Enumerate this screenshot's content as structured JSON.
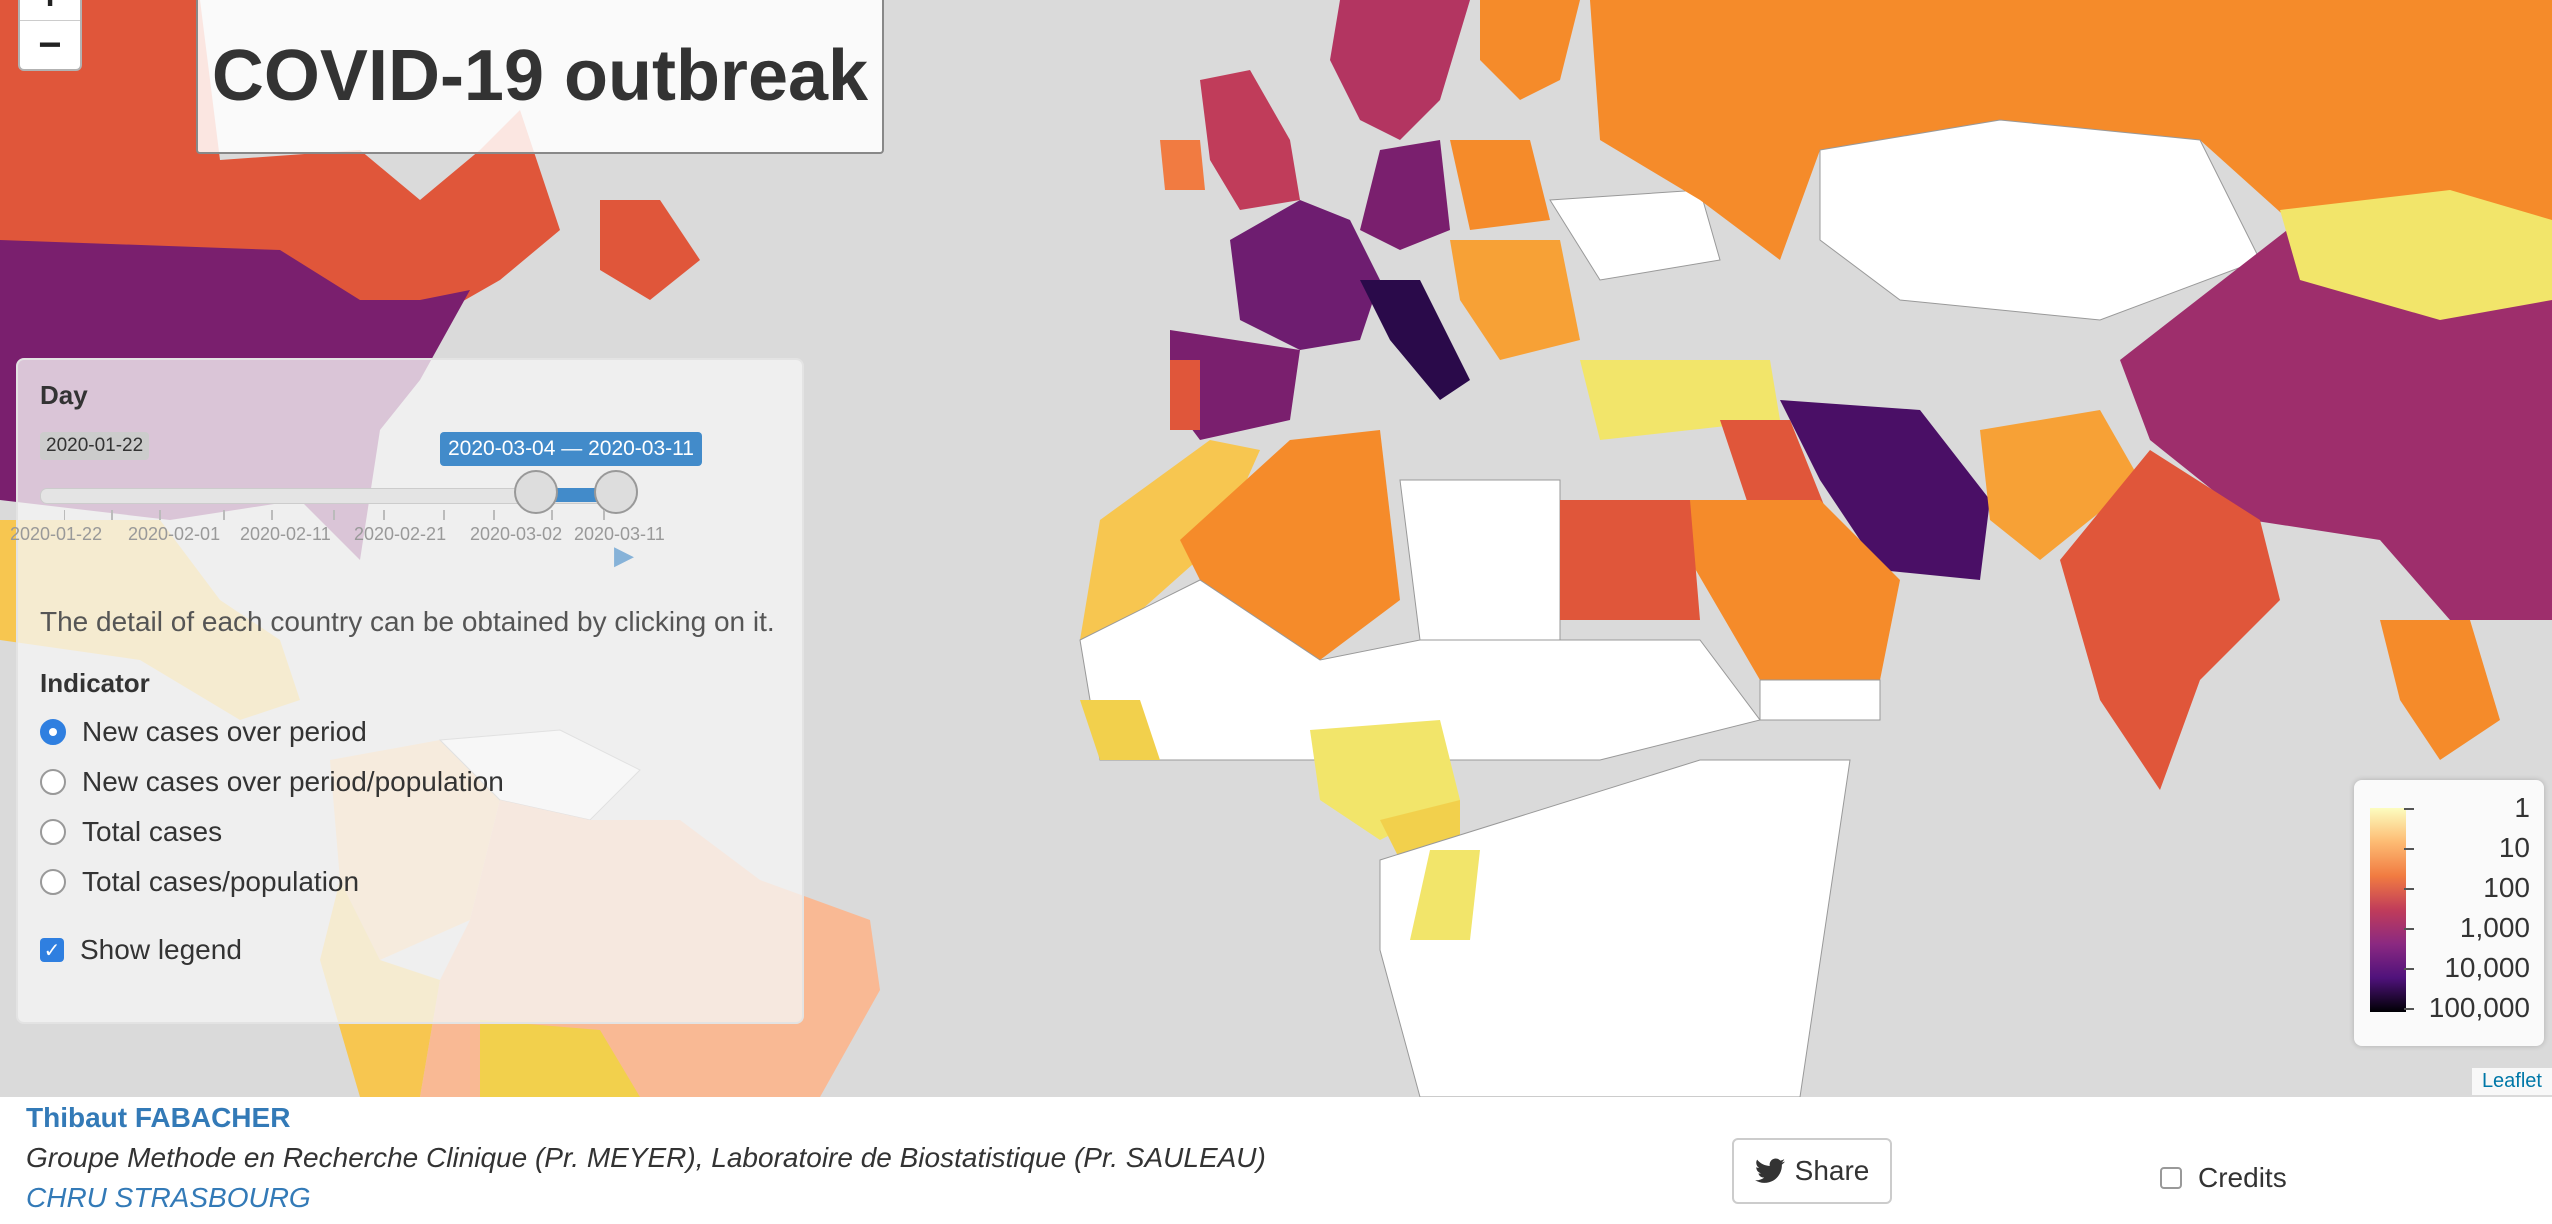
{
  "title": "COVID-19 outbreak",
  "zoom": {
    "in_label": "+",
    "out_label": "−"
  },
  "panel": {
    "day_label": "Day",
    "slider_min": "2020-01-22",
    "slider_range": "2020-03-04 — 2020-03-11",
    "tick_labels": [
      "2020-01-22",
      "2020-02-01",
      "2020-02-11",
      "2020-02-21",
      "2020-03-02",
      "2020-03-11"
    ],
    "detail_text": "The detail of each country can be obtained by clicking on it.",
    "indicator_label": "Indicator",
    "options": [
      "New cases over period",
      "New cases over period/population",
      "Total cases",
      "Total cases/population"
    ],
    "selected_option": "New cases over period",
    "show_legend_label": "Show legend",
    "show_legend_checked": true
  },
  "legend": {
    "labels": [
      "1",
      "10",
      "100",
      "1,000",
      "10,000",
      "100,000"
    ],
    "colors": [
      "#fcfdbf",
      "#fdbb73",
      "#f17b41",
      "#c03c5a",
      "#8b2981",
      "#4f127b",
      "#000004"
    ]
  },
  "attribution": "Leaflet",
  "footer": {
    "author": "Thibaut FABACHER",
    "group": "Groupe Methode en Recherche Clinique (Pr. MEYER), Laboratoire de Biostatistique (Pr. SAULEAU)",
    "institution": "CHRU STRASBOURG",
    "share_label": "Share",
    "credits_label": "Credits"
  }
}
